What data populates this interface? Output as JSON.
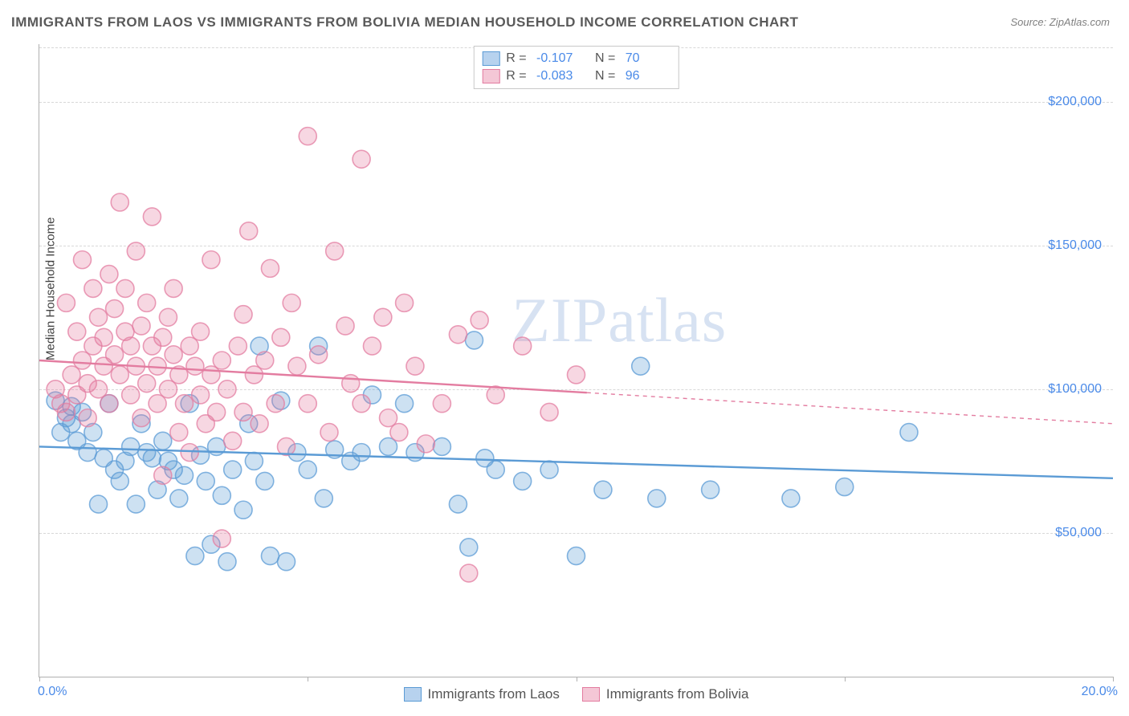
{
  "title": "IMMIGRANTS FROM LAOS VS IMMIGRANTS FROM BOLIVIA MEDIAN HOUSEHOLD INCOME CORRELATION CHART",
  "source": "Source: ZipAtlas.com",
  "watermark": "ZIPatlas",
  "ylabel": "Median Household Income",
  "chart": {
    "type": "scatter",
    "xlim": [
      0,
      20
    ],
    "ylim": [
      0,
      220000
    ],
    "yticks": [
      50000,
      100000,
      150000,
      200000
    ],
    "ytick_labels": [
      "$50,000",
      "$100,000",
      "$150,000",
      "$200,000"
    ],
    "xticks": [
      0,
      5,
      10,
      15,
      20
    ],
    "xtick_labels_shown": {
      "0": "0.0%",
      "20": "20.0%"
    },
    "background_color": "#ffffff",
    "grid_color": "#d8d8d8",
    "axis_color": "#b0b0b0",
    "tick_label_color": "#4a8ae8",
    "marker_radius": 11,
    "marker_fill_opacity": 0.3,
    "marker_stroke_width": 1.6,
    "trend_line_width": 2.4,
    "series": [
      {
        "name": "Immigrants from Laos",
        "color": "#5b9bd5",
        "fill": "#b7d2ee",
        "R": "-0.107",
        "N": "70",
        "trend": {
          "y_at_x0": 80000,
          "y_at_x20": 69000,
          "solid_until_x": 20
        },
        "points": [
          [
            0.3,
            96000
          ],
          [
            0.4,
            85000
          ],
          [
            0.5,
            90000
          ],
          [
            0.6,
            94000
          ],
          [
            0.6,
            88000
          ],
          [
            0.7,
            82000
          ],
          [
            0.8,
            92000
          ],
          [
            0.9,
            78000
          ],
          [
            1.0,
            85000
          ],
          [
            1.1,
            60000
          ],
          [
            1.2,
            76000
          ],
          [
            1.3,
            95000
          ],
          [
            1.4,
            72000
          ],
          [
            1.5,
            68000
          ],
          [
            1.6,
            75000
          ],
          [
            1.7,
            80000
          ],
          [
            1.8,
            60000
          ],
          [
            1.9,
            88000
          ],
          [
            2.0,
            78000
          ],
          [
            2.1,
            76000
          ],
          [
            2.2,
            65000
          ],
          [
            2.3,
            82000
          ],
          [
            2.4,
            75000
          ],
          [
            2.5,
            72000
          ],
          [
            2.6,
            62000
          ],
          [
            2.7,
            70000
          ],
          [
            2.8,
            95000
          ],
          [
            2.9,
            42000
          ],
          [
            3.0,
            77000
          ],
          [
            3.1,
            68000
          ],
          [
            3.2,
            46000
          ],
          [
            3.3,
            80000
          ],
          [
            3.4,
            63000
          ],
          [
            3.5,
            40000
          ],
          [
            3.6,
            72000
          ],
          [
            3.8,
            58000
          ],
          [
            3.9,
            88000
          ],
          [
            4.0,
            75000
          ],
          [
            4.1,
            115000
          ],
          [
            4.2,
            68000
          ],
          [
            4.3,
            42000
          ],
          [
            4.5,
            96000
          ],
          [
            4.6,
            40000
          ],
          [
            4.8,
            78000
          ],
          [
            5.0,
            72000
          ],
          [
            5.2,
            115000
          ],
          [
            5.3,
            62000
          ],
          [
            5.5,
            79000
          ],
          [
            5.8,
            75000
          ],
          [
            6.0,
            78000
          ],
          [
            6.2,
            98000
          ],
          [
            6.5,
            80000
          ],
          [
            6.8,
            95000
          ],
          [
            7.0,
            78000
          ],
          [
            7.5,
            80000
          ],
          [
            8.0,
            45000
          ],
          [
            8.1,
            117000
          ],
          [
            8.3,
            76000
          ],
          [
            8.5,
            72000
          ],
          [
            9.0,
            68000
          ],
          [
            9.5,
            72000
          ],
          [
            10.5,
            65000
          ],
          [
            11.2,
            108000
          ],
          [
            11.5,
            62000
          ],
          [
            12.5,
            65000
          ],
          [
            14.0,
            62000
          ],
          [
            15.0,
            66000
          ],
          [
            16.2,
            85000
          ],
          [
            10.0,
            42000
          ],
          [
            7.8,
            60000
          ]
        ]
      },
      {
        "name": "Immigrants from Bolivia",
        "color": "#e37ca0",
        "fill": "#f4c7d6",
        "R": "-0.083",
        "N": "96",
        "trend": {
          "y_at_x0": 110000,
          "y_at_x20": 88000,
          "solid_until_x": 10.2
        },
        "points": [
          [
            0.3,
            100000
          ],
          [
            0.4,
            95000
          ],
          [
            0.5,
            130000
          ],
          [
            0.5,
            92000
          ],
          [
            0.6,
            105000
          ],
          [
            0.7,
            98000
          ],
          [
            0.7,
            120000
          ],
          [
            0.8,
            110000
          ],
          [
            0.8,
            145000
          ],
          [
            0.9,
            102000
          ],
          [
            0.9,
            90000
          ],
          [
            1.0,
            115000
          ],
          [
            1.0,
            135000
          ],
          [
            1.1,
            125000
          ],
          [
            1.1,
            100000
          ],
          [
            1.2,
            108000
          ],
          [
            1.2,
            118000
          ],
          [
            1.3,
            140000
          ],
          [
            1.3,
            95000
          ],
          [
            1.4,
            128000
          ],
          [
            1.4,
            112000
          ],
          [
            1.5,
            165000
          ],
          [
            1.5,
            105000
          ],
          [
            1.6,
            120000
          ],
          [
            1.6,
            135000
          ],
          [
            1.7,
            98000
          ],
          [
            1.7,
            115000
          ],
          [
            1.8,
            108000
          ],
          [
            1.8,
            148000
          ],
          [
            1.9,
            122000
          ],
          [
            1.9,
            90000
          ],
          [
            2.0,
            130000
          ],
          [
            2.0,
            102000
          ],
          [
            2.1,
            115000
          ],
          [
            2.1,
            160000
          ],
          [
            2.2,
            108000
          ],
          [
            2.2,
            95000
          ],
          [
            2.3,
            118000
          ],
          [
            2.3,
            70000
          ],
          [
            2.4,
            125000
          ],
          [
            2.4,
            100000
          ],
          [
            2.5,
            112000
          ],
          [
            2.5,
            135000
          ],
          [
            2.6,
            85000
          ],
          [
            2.6,
            105000
          ],
          [
            2.7,
            95000
          ],
          [
            2.8,
            115000
          ],
          [
            2.8,
            78000
          ],
          [
            2.9,
            108000
          ],
          [
            3.0,
            98000
          ],
          [
            3.0,
            120000
          ],
          [
            3.1,
            88000
          ],
          [
            3.2,
            105000
          ],
          [
            3.2,
            145000
          ],
          [
            3.3,
            92000
          ],
          [
            3.4,
            48000
          ],
          [
            3.4,
            110000
          ],
          [
            3.5,
            100000
          ],
          [
            3.6,
            82000
          ],
          [
            3.7,
            115000
          ],
          [
            3.8,
            92000
          ],
          [
            3.8,
            126000
          ],
          [
            3.9,
            155000
          ],
          [
            4.0,
            105000
          ],
          [
            4.1,
            88000
          ],
          [
            4.2,
            110000
          ],
          [
            4.3,
            142000
          ],
          [
            4.4,
            95000
          ],
          [
            4.5,
            118000
          ],
          [
            4.6,
            80000
          ],
          [
            4.7,
            130000
          ],
          [
            4.8,
            108000
          ],
          [
            5.0,
            188000
          ],
          [
            5.0,
            95000
          ],
          [
            5.2,
            112000
          ],
          [
            5.4,
            85000
          ],
          [
            5.5,
            148000
          ],
          [
            5.7,
            122000
          ],
          [
            5.8,
            102000
          ],
          [
            6.0,
            180000
          ],
          [
            6.0,
            95000
          ],
          [
            6.2,
            115000
          ],
          [
            6.4,
            125000
          ],
          [
            6.5,
            90000
          ],
          [
            6.7,
            85000
          ],
          [
            6.8,
            130000
          ],
          [
            7.0,
            108000
          ],
          [
            7.2,
            81000
          ],
          [
            7.5,
            95000
          ],
          [
            7.8,
            119000
          ],
          [
            8.0,
            36000
          ],
          [
            8.2,
            124000
          ],
          [
            8.5,
            98000
          ],
          [
            9.0,
            115000
          ],
          [
            9.5,
            92000
          ],
          [
            10.0,
            105000
          ]
        ]
      }
    ]
  }
}
